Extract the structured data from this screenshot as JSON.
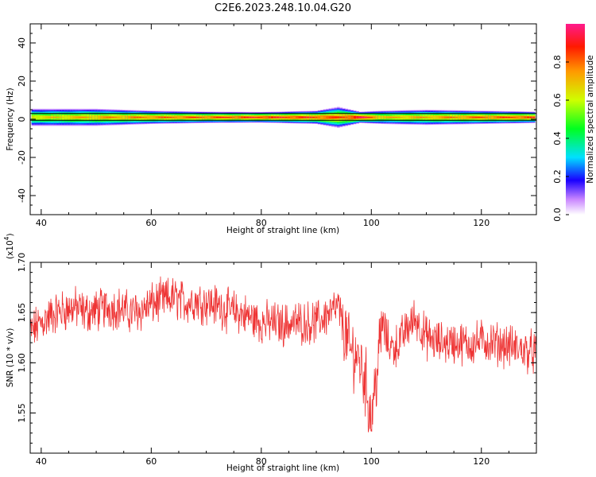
{
  "title": "C2E6.2023.248.10.04.G20",
  "chart_data": [
    {
      "type": "heatmap",
      "xlabel": "Height of straight line (km)",
      "ylabel": "Frequency (Hz)",
      "xlim": [
        38,
        130
      ],
      "ylim": [
        -50,
        50
      ],
      "xticks": [
        40,
        60,
        80,
        100,
        120
      ],
      "yticks": [
        -40,
        -20,
        0,
        20,
        40
      ],
      "colorbar": {
        "label": "Normalized spectral amplitude",
        "range": [
          0,
          1
        ],
        "ticks": [
          0.0,
          0.2,
          0.4,
          0.6,
          0.8
        ],
        "tick_labels": [
          "0.0",
          "0.2",
          "0.4",
          "0.6",
          "0.8"
        ],
        "colormap": "rainbow (white to violet to blue to cyan to green to yellow to red to magenta)"
      },
      "band": {
        "center_freq_hz": 1,
        "bins": [
          {
            "x": 40,
            "halfwidth_hz": 4.5,
            "peak": 0.65
          },
          {
            "x": 50,
            "halfwidth_hz": 4.5,
            "peak": 0.72
          },
          {
            "x": 60,
            "halfwidth_hz": 3.5,
            "peak": 0.78
          },
          {
            "x": 70,
            "halfwidth_hz": 3.0,
            "peak": 0.82
          },
          {
            "x": 80,
            "halfwidth_hz": 2.8,
            "peak": 0.88
          },
          {
            "x": 90,
            "halfwidth_hz": 3.5,
            "peak": 0.85
          },
          {
            "x": 94,
            "halfwidth_hz": 5.5,
            "peak": 0.8
          },
          {
            "x": 98,
            "halfwidth_hz": 3.0,
            "peak": 0.95
          },
          {
            "x": 102,
            "halfwidth_hz": 3.5,
            "peak": 0.7
          },
          {
            "x": 110,
            "halfwidth_hz": 4.0,
            "peak": 0.72
          },
          {
            "x": 120,
            "halfwidth_hz": 3.5,
            "peak": 0.8
          },
          {
            "x": 130,
            "halfwidth_hz": 3.0,
            "peak": 0.85
          }
        ]
      }
    },
    {
      "type": "line",
      "xlabel": "Height of straight line (km)",
      "ylabel": "SNR (10 * v/v)",
      "y_multiplier_label": "(x10",
      "y_multiplier_exp": "4",
      "xlim": [
        38,
        130
      ],
      "ylim": [
        1.51,
        1.7
      ],
      "xticks": [
        40,
        60,
        80,
        100,
        120
      ],
      "yticks": [
        1.55,
        1.6,
        1.65,
        1.7
      ],
      "ytick_labels": [
        "1.55",
        "1.60",
        "1.65",
        "1.70"
      ],
      "color": "#ee3333",
      "series": [
        {
          "x": [
            38,
            40,
            42,
            44,
            46,
            48,
            50,
            52,
            54,
            56,
            58,
            60,
            62,
            64,
            66,
            68,
            70,
            72,
            74,
            76,
            78,
            80,
            82,
            84,
            86,
            88,
            90,
            92,
            94,
            95,
            96,
            97,
            98,
            99,
            99.5,
            100,
            100.5,
            101,
            102,
            103,
            104,
            105,
            106,
            108,
            110,
            112,
            114,
            116,
            118,
            120,
            122,
            124,
            126,
            128,
            130
          ],
          "values": [
            1.63,
            1.64,
            1.648,
            1.652,
            1.655,
            1.65,
            1.652,
            1.655,
            1.655,
            1.65,
            1.652,
            1.658,
            1.662,
            1.665,
            1.66,
            1.662,
            1.66,
            1.657,
            1.652,
            1.65,
            1.645,
            1.64,
            1.64,
            1.638,
            1.64,
            1.64,
            1.64,
            1.648,
            1.655,
            1.635,
            1.612,
            1.61,
            1.6,
            1.58,
            1.56,
            1.545,
            1.57,
            1.59,
            1.64,
            1.62,
            1.615,
            1.62,
            1.63,
            1.645,
            1.625,
            1.62,
            1.62,
            1.62,
            1.618,
            1.622,
            1.62,
            1.618,
            1.615,
            1.612,
            1.61
          ]
        }
      ]
    }
  ]
}
